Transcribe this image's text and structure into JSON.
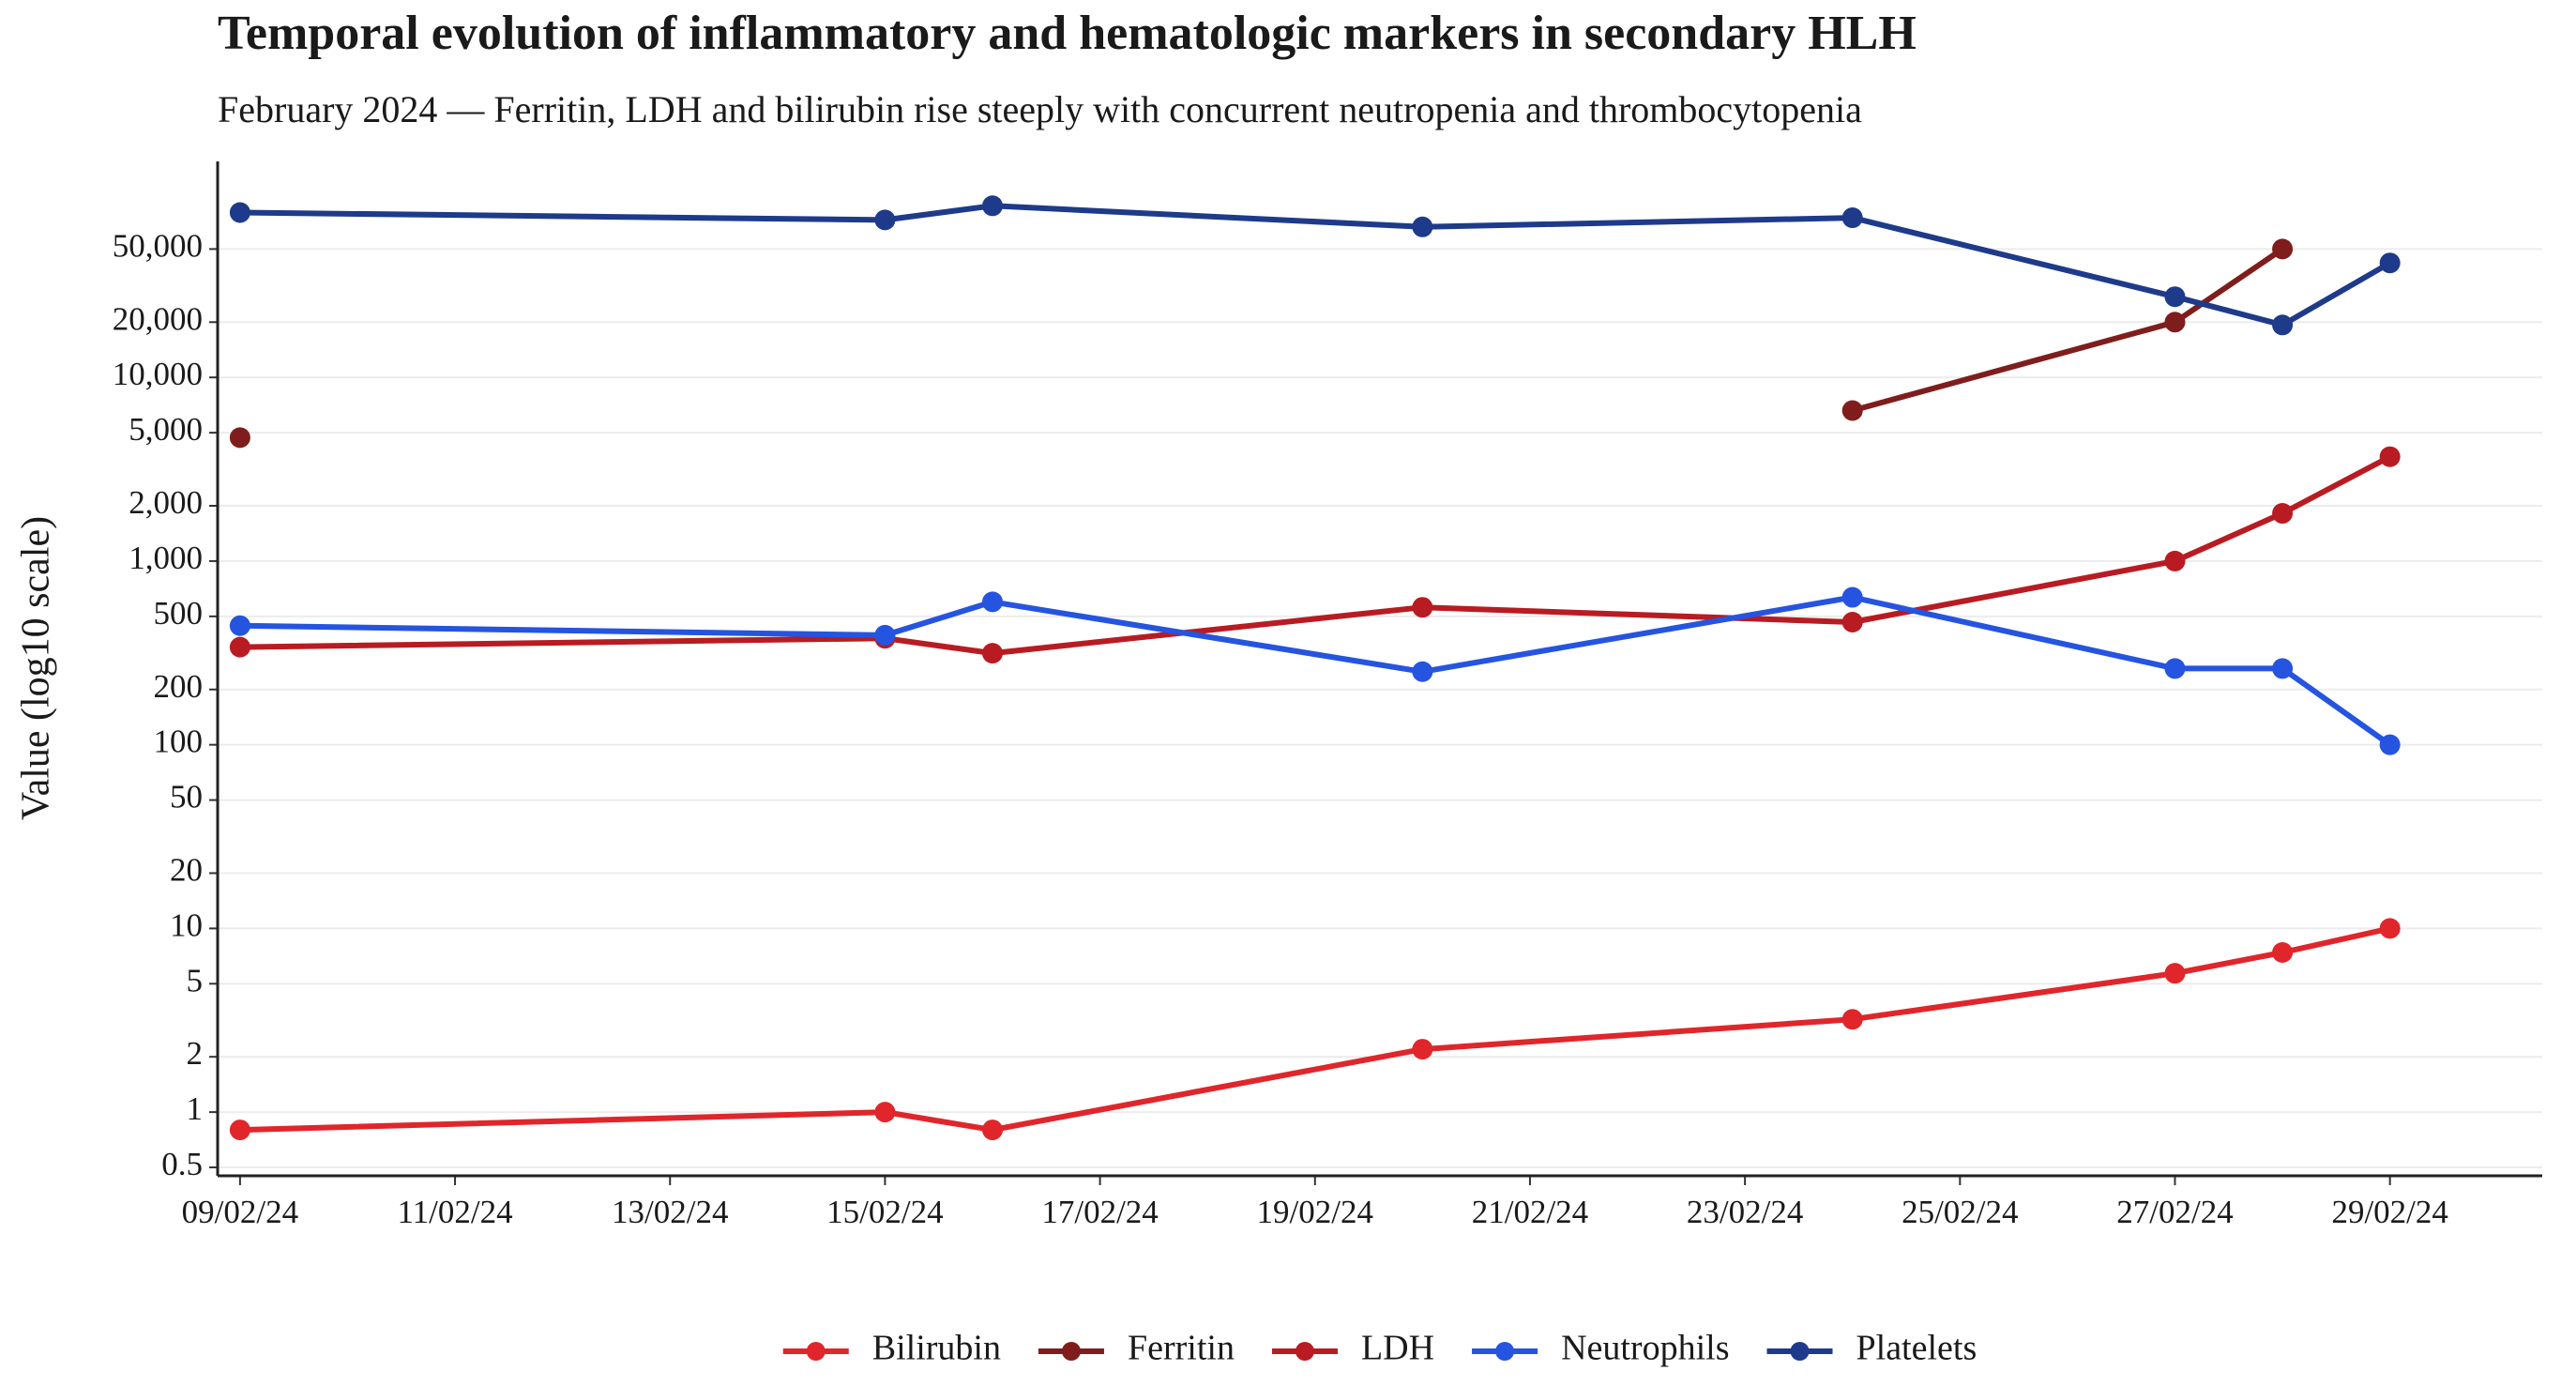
{
  "chart_data": {
    "type": "line",
    "title": "Temporal evolution of inflammatory and hematologic markers in secondary HLH",
    "subtitle": "February 2024 — Ferritin, LDH and bilirubin rise steeply with concurrent neutropenia and thrombocytopenia",
    "y_label": "Value (log10 scale)",
    "x": [
      "2024-02-09",
      "2024-02-15",
      "2024-02-16",
      "2024-02-20",
      "2024-02-24",
      "2024-02-27",
      "2024-02-28",
      "2024-02-29"
    ],
    "xlim": [
      "2024-02-08T19:00:00Z",
      "2024-03-01T10:00:00Z"
    ],
    "xticks": [
      {
        "value": "2024-02-09",
        "label": "09/02/24"
      },
      {
        "value": "2024-02-11",
        "label": "11/02/24"
      },
      {
        "value": "2024-02-13",
        "label": "13/02/24"
      },
      {
        "value": "2024-02-15",
        "label": "15/02/24"
      },
      {
        "value": "2024-02-17",
        "label": "17/02/24"
      },
      {
        "value": "2024-02-19",
        "label": "19/02/24"
      },
      {
        "value": "2024-02-21",
        "label": "21/02/24"
      },
      {
        "value": "2024-02-23",
        "label": "23/02/24"
      },
      {
        "value": "2024-02-25",
        "label": "25/02/24"
      },
      {
        "value": "2024-02-27",
        "label": "27/02/24"
      },
      {
        "value": "2024-02-29",
        "label": "29/02/24"
      }
    ],
    "y_scale": "log",
    "ylim": [
      0.45,
      150000
    ],
    "yticks": [
      0.5,
      1,
      2,
      5,
      10,
      20,
      50,
      100,
      200,
      500,
      {
        "value": 1000,
        "label": "1,000"
      },
      {
        "value": 2000,
        "label": "2,000"
      },
      {
        "value": 5000,
        "label": "5,000"
      },
      {
        "value": 10000,
        "label": "10,000"
      },
      {
        "value": 20000,
        "label": "20,000"
      },
      {
        "value": 50000,
        "label": "50,000"
      }
    ],
    "grid": true,
    "legend": "bottom",
    "series": [
      {
        "name": "Bilirubin",
        "color": "#e0262b",
        "values": [
          0.8,
          1.0,
          0.8,
          2.2,
          3.2,
          5.7,
          7.4,
          10
        ]
      },
      {
        "name": "Ferritin",
        "color": "#7f1d1d",
        "values": [
          4700,
          null,
          null,
          null,
          6600,
          20000,
          50000,
          null
        ]
      },
      {
        "name": "LDH",
        "color": "#b81c22",
        "values": [
          340,
          380,
          315,
          560,
          465,
          1000,
          1820,
          3700
        ]
      },
      {
        "name": "Neutrophils",
        "color": "#2554e0",
        "values": [
          445,
          395,
          600,
          250,
          635,
          260,
          260,
          100
        ]
      },
      {
        "name": "Platelets",
        "color": "#1e3a8a",
        "values": [
          79000,
          72000,
          86000,
          66000,
          74000,
          27500,
          19300,
          42000
        ]
      }
    ]
  }
}
